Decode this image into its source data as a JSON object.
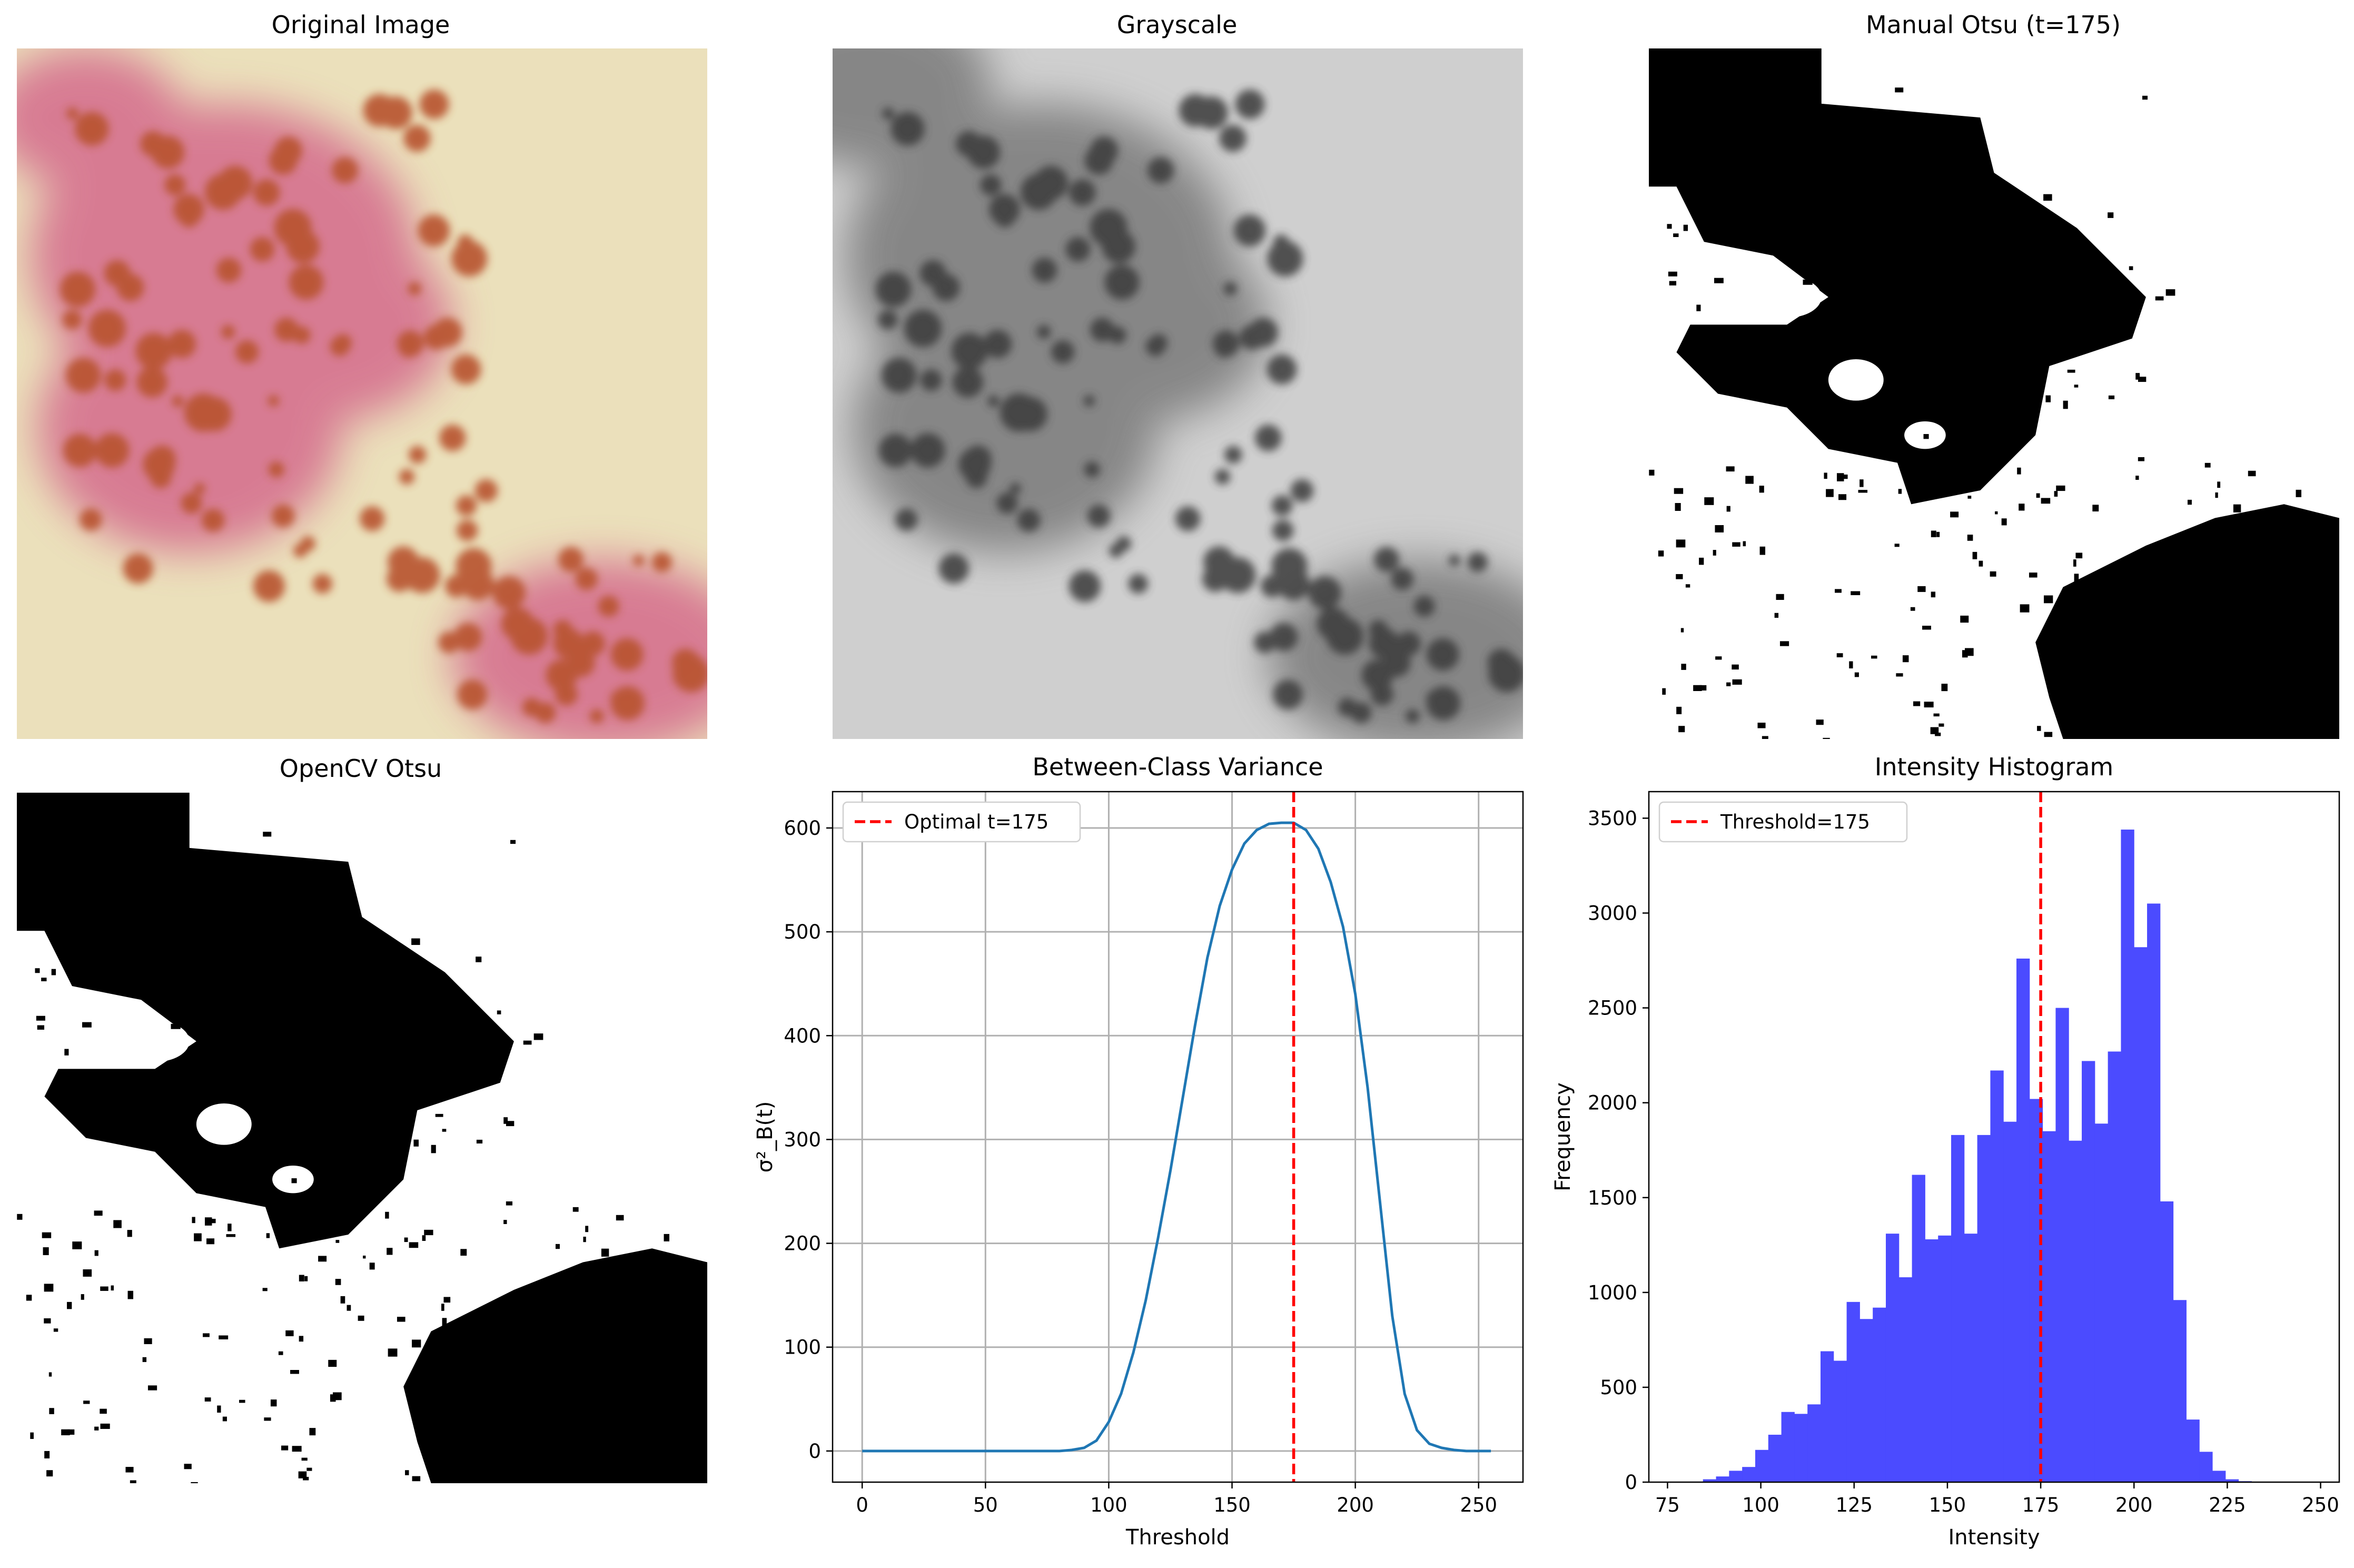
{
  "panels": {
    "original": {
      "title": "Original Image"
    },
    "grayscale": {
      "title": "Grayscale"
    },
    "manual_otsu": {
      "title": "Manual Otsu (t=175)"
    },
    "opencv_otsu": {
      "title": "OpenCV Otsu"
    }
  },
  "colors": {
    "skin": "#e8ddb8",
    "lesion": "#c9547a",
    "vesicle": "#b8532f",
    "curve": "#1f77b4",
    "threshold_line": "#ff0000",
    "histogram": "#4b4bff"
  },
  "chart_data": [
    {
      "type": "line",
      "title": "Between-Class Variance",
      "xlabel": "Threshold",
      "ylabel": "σ²_B(t)",
      "xlim": [
        -12,
        268
      ],
      "ylim": [
        -30,
        635
      ],
      "xticks": [
        0,
        50,
        100,
        150,
        200,
        250
      ],
      "yticks": [
        0,
        100,
        200,
        300,
        400,
        500,
        600
      ],
      "grid": true,
      "legend": "top-left",
      "series": [
        {
          "x": [
            0,
            50,
            80,
            85,
            90,
            95,
            100,
            105,
            110,
            115,
            120,
            125,
            130,
            135,
            140,
            145,
            150,
            155,
            160,
            165,
            170,
            175,
            180,
            185,
            190,
            195,
            200,
            205,
            210,
            215,
            220,
            225,
            230,
            235,
            240,
            245,
            250,
            255
          ],
          "y": [
            0,
            0,
            0,
            1,
            3,
            10,
            28,
            55,
            95,
            145,
            205,
            270,
            340,
            410,
            475,
            525,
            560,
            585,
            598,
            604,
            605,
            605,
            598,
            580,
            548,
            505,
            440,
            350,
            240,
            130,
            55,
            20,
            7,
            3,
            1,
            0,
            0,
            0
          ]
        }
      ],
      "vline": {
        "x": 175,
        "label": "Optimal t=175"
      }
    },
    {
      "type": "bar",
      "title": "Intensity Histogram",
      "xlabel": "Intensity",
      "ylabel": "Frequency",
      "xlim": [
        70,
        255
      ],
      "ylim": [
        0,
        3640
      ],
      "xticks": [
        75,
        100,
        125,
        150,
        175,
        200,
        225,
        250
      ],
      "yticks": [
        0,
        500,
        1000,
        1500,
        2000,
        2500,
        3000,
        3500
      ],
      "bin_width": 3.5,
      "bin_edges_start": 81,
      "values": [
        3,
        15,
        30,
        60,
        80,
        170,
        250,
        370,
        360,
        410,
        690,
        640,
        950,
        860,
        920,
        1310,
        1080,
        1620,
        1280,
        1300,
        1830,
        1310,
        1830,
        2170,
        1900,
        2760,
        2020,
        1850,
        2500,
        1800,
        2220,
        1890,
        2270,
        3440,
        2820,
        3050,
        1480,
        960,
        330,
        160,
        60,
        15,
        5
      ],
      "vline": {
        "x": 175,
        "label": "Threshold=175"
      }
    }
  ]
}
